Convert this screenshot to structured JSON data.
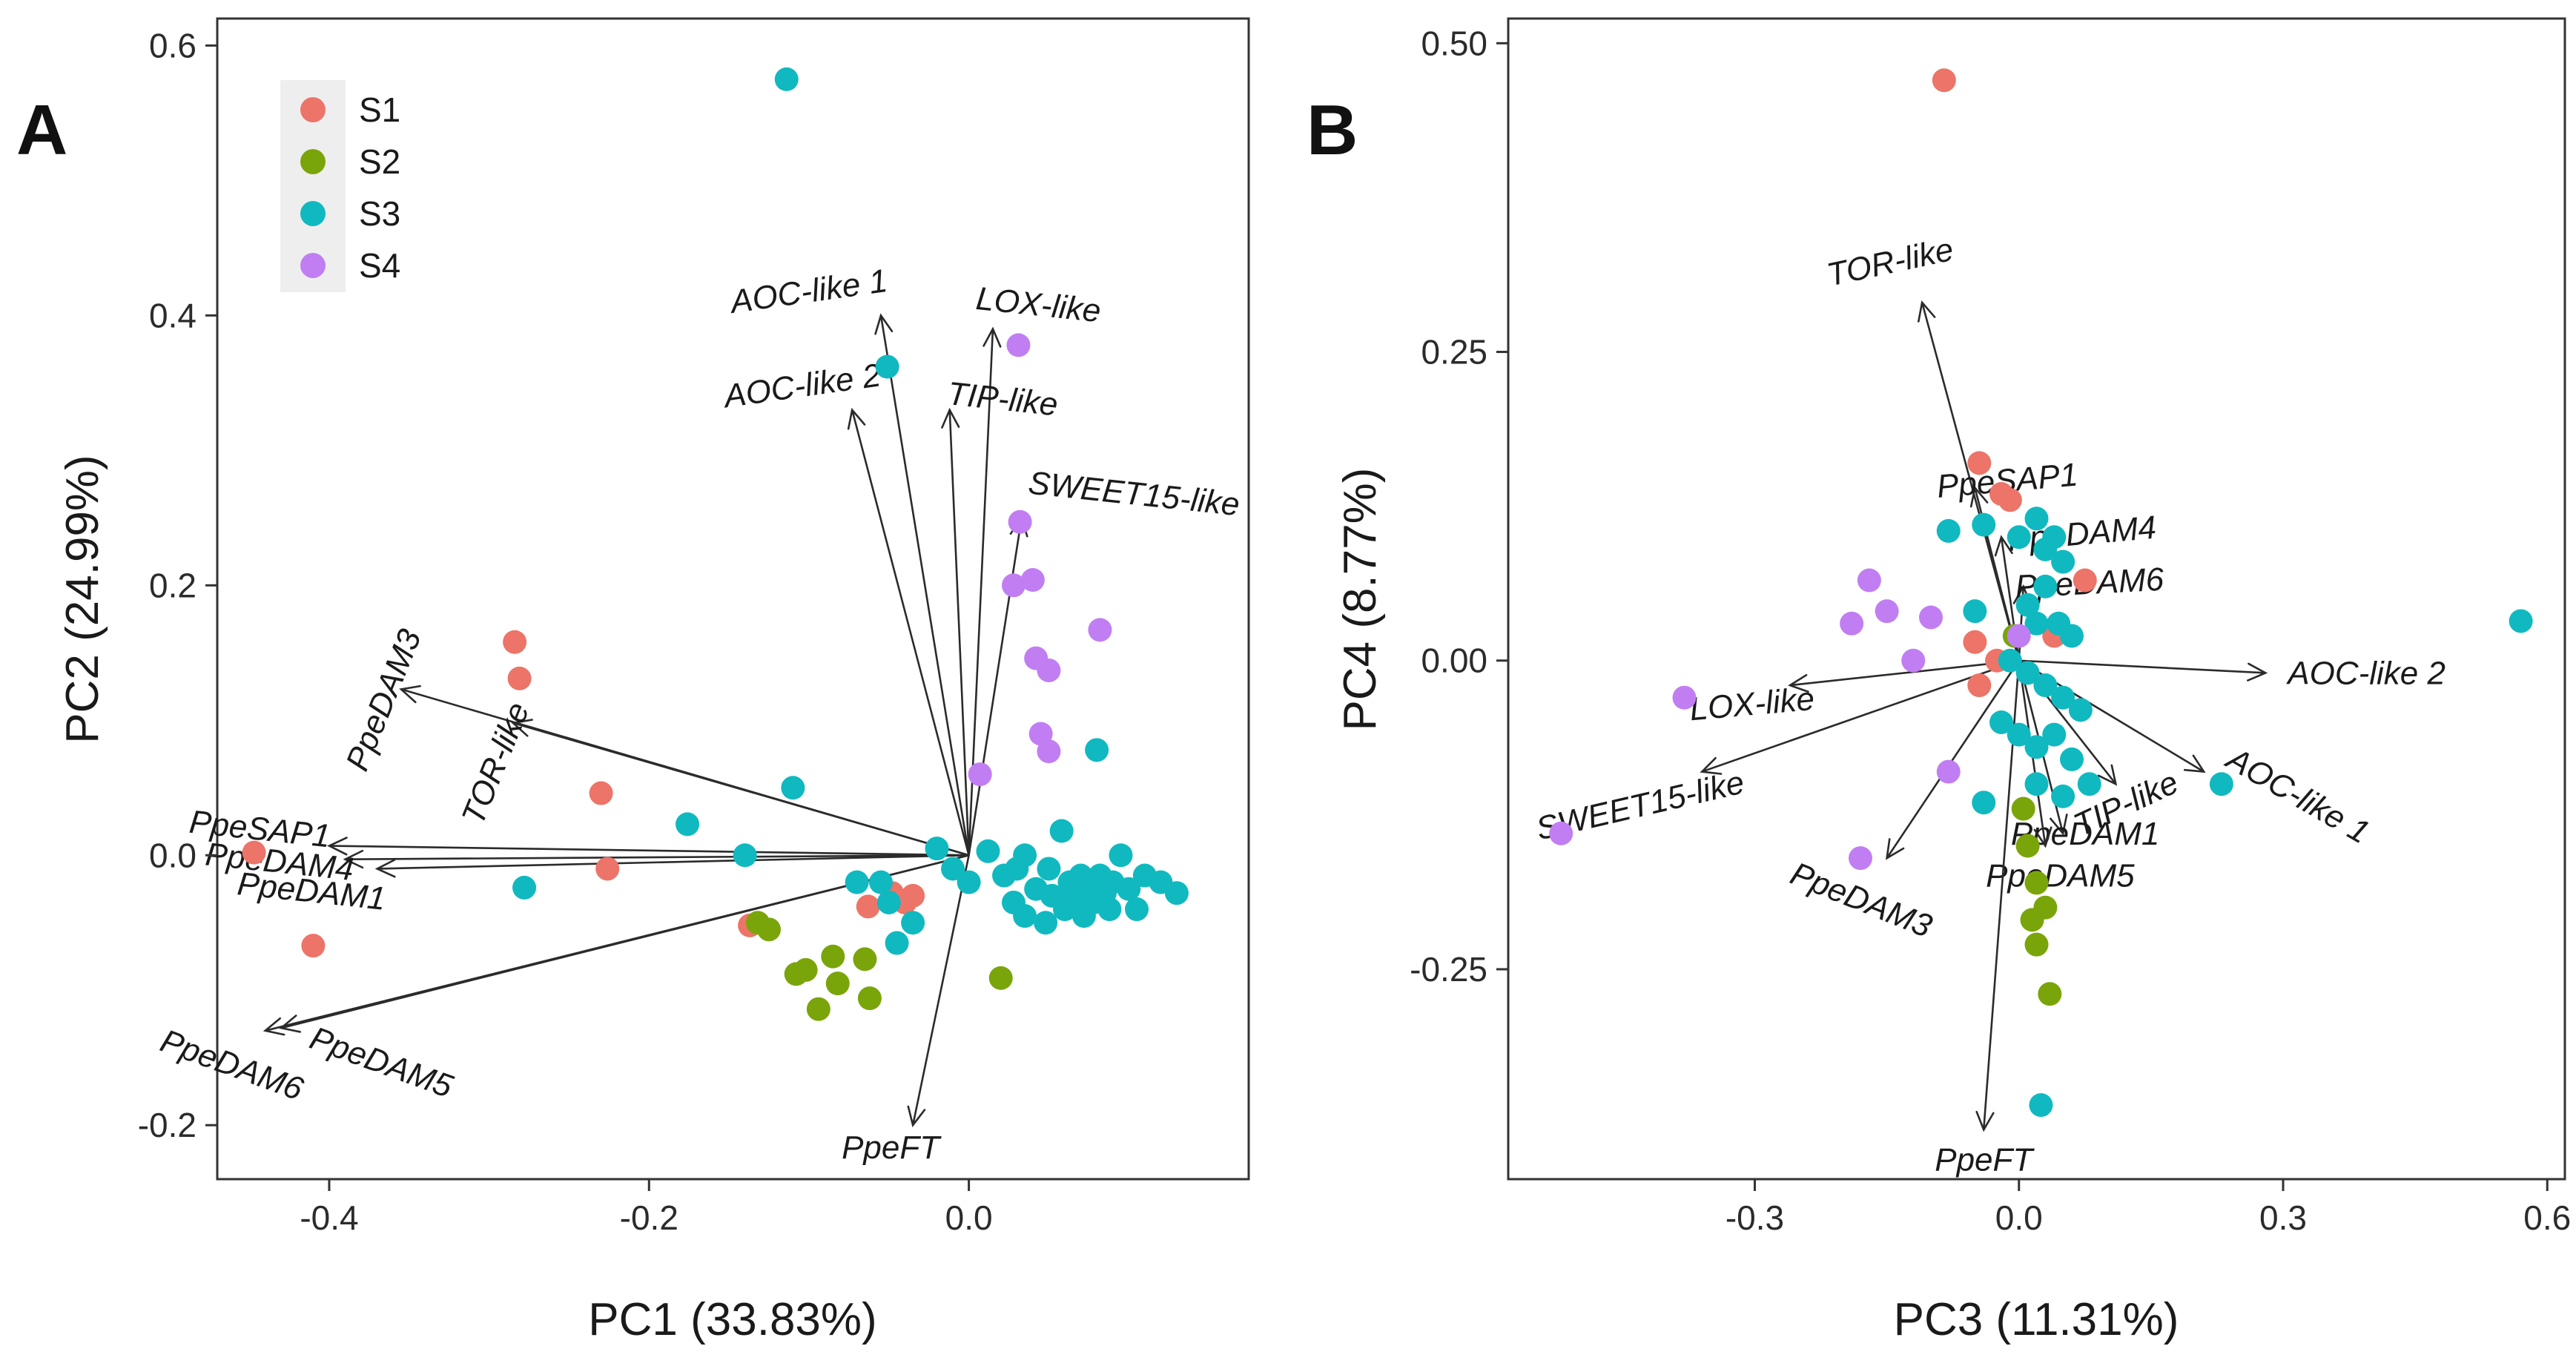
{
  "colors": {
    "S1": "#ec7468",
    "S2": "#7aa50a",
    "S3": "#10b9bf",
    "S4": "#c17ef2"
  },
  "chart_data": [
    {
      "type": "scatter",
      "panel": "A",
      "xlabel": "PC1 (33.83%)",
      "ylabel": "PC2 (24.99%)",
      "xlim": [
        -0.47,
        0.175
      ],
      "ylim": [
        -0.24,
        0.62
      ],
      "xticks": [
        -0.4,
        -0.2,
        0.0
      ],
      "xtick_labels": [
        "-0.4",
        "-0.2",
        "0.0"
      ],
      "yticks": [
        -0.2,
        0.0,
        0.2,
        0.4,
        0.6
      ],
      "ytick_labels": [
        "-0.2",
        "0.0",
        "0.2",
        "0.4",
        "0.6"
      ],
      "legend": {
        "position": "top-left",
        "entries": [
          "S1",
          "S2",
          "S3",
          "S4"
        ]
      },
      "series": [
        {
          "name": "S1",
          "points": [
            [
              -0.447,
              0.002
            ],
            [
              -0.41,
              -0.067
            ],
            [
              -0.284,
              0.158
            ],
            [
              -0.281,
              0.131
            ],
            [
              -0.23,
              0.046
            ],
            [
              -0.226,
              -0.01
            ],
            [
              -0.137,
              -0.052
            ],
            [
              -0.063,
              -0.038
            ],
            [
              -0.048,
              -0.028
            ],
            [
              -0.04,
              -0.035
            ],
            [
              -0.035,
              -0.03
            ]
          ]
        },
        {
          "name": "S2",
          "points": [
            [
              -0.132,
              -0.05
            ],
            [
              -0.125,
              -0.055
            ],
            [
              -0.108,
              -0.088
            ],
            [
              -0.102,
              -0.085
            ],
            [
              -0.094,
              -0.114
            ],
            [
              -0.085,
              -0.075
            ],
            [
              -0.082,
              -0.095
            ],
            [
              -0.065,
              -0.077
            ],
            [
              -0.062,
              -0.106
            ],
            [
              0.02,
              -0.091
            ]
          ]
        },
        {
          "name": "S3",
          "points": [
            [
              -0.114,
              0.575
            ],
            [
              -0.051,
              0.362
            ],
            [
              -0.176,
              0.023
            ],
            [
              -0.278,
              -0.024
            ],
            [
              -0.11,
              0.05
            ],
            [
              -0.14,
              0.0
            ],
            [
              -0.07,
              -0.02
            ],
            [
              -0.055,
              -0.02
            ],
            [
              -0.05,
              -0.035
            ],
            [
              -0.035,
              -0.05
            ],
            [
              -0.045,
              -0.065
            ],
            [
              -0.02,
              0.005
            ],
            [
              -0.01,
              -0.01
            ],
            [
              0.0,
              -0.02
            ],
            [
              0.012,
              0.003
            ],
            [
              0.022,
              -0.015
            ],
            [
              0.028,
              -0.035
            ],
            [
              0.03,
              -0.01
            ],
            [
              0.035,
              0.0
            ],
            [
              0.035,
              -0.045
            ],
            [
              0.042,
              -0.025
            ],
            [
              0.048,
              -0.05
            ],
            [
              0.05,
              -0.01
            ],
            [
              0.052,
              -0.03
            ],
            [
              0.058,
              0.018
            ],
            [
              0.06,
              -0.04
            ],
            [
              0.063,
              -0.02
            ],
            [
              0.066,
              -0.03
            ],
            [
              0.07,
              -0.015
            ],
            [
              0.072,
              -0.045
            ],
            [
              0.075,
              -0.025
            ],
            [
              0.078,
              -0.035
            ],
            [
              0.08,
              0.078
            ],
            [
              0.082,
              -0.015
            ],
            [
              0.085,
              -0.028
            ],
            [
              0.088,
              -0.04
            ],
            [
              0.09,
              -0.02
            ],
            [
              0.095,
              0.0
            ],
            [
              0.1,
              -0.025
            ],
            [
              0.105,
              -0.04
            ],
            [
              0.11,
              -0.015
            ],
            [
              0.12,
              -0.02
            ],
            [
              0.13,
              -0.028
            ]
          ]
        },
        {
          "name": "S4",
          "points": [
            [
              0.031,
              0.378
            ],
            [
              0.032,
              0.247
            ],
            [
              0.028,
              0.2
            ],
            [
              0.04,
              0.204
            ],
            [
              0.042,
              0.146
            ],
            [
              0.05,
              0.137
            ],
            [
              0.045,
              0.09
            ],
            [
              0.05,
              0.077
            ],
            [
              0.082,
              0.167
            ],
            [
              0.007,
              0.06
            ]
          ]
        }
      ],
      "loadings": [
        {
          "label": "AOC-like 1",
          "x": -0.055,
          "y": 0.4
        },
        {
          "label": "LOX-like",
          "x": 0.015,
          "y": 0.39
        },
        {
          "label": "AOC-like 2",
          "x": -0.073,
          "y": 0.33
        },
        {
          "label": "TIP-like",
          "x": -0.012,
          "y": 0.33
        },
        {
          "label": "SWEET15-like",
          "x": 0.033,
          "y": 0.25
        },
        {
          "label": "PpeDAM3",
          "x": -0.355,
          "y": 0.123
        },
        {
          "label": "TOR-like",
          "x": -0.285,
          "y": 0.098
        },
        {
          "label": "PpeSAP1",
          "x": -0.4,
          "y": 0.007
        },
        {
          "label": "PpeDAM4",
          "x": -0.39,
          "y": -0.003
        },
        {
          "label": "PpeDAM1",
          "x": -0.37,
          "y": -0.01
        },
        {
          "label": "PpeDAM6",
          "x": -0.44,
          "y": -0.13
        },
        {
          "label": "PpeDAM5",
          "x": -0.43,
          "y": -0.128
        },
        {
          "label": "PpeFT",
          "x": -0.035,
          "y": -0.2
        }
      ]
    },
    {
      "type": "scatter",
      "panel": "B",
      "xlabel": "PC3 (11.31%)",
      "ylabel": "PC4 (8.77%)",
      "xlim": [
        -0.58,
        0.62
      ],
      "ylim": [
        -0.42,
        0.52
      ],
      "xticks": [
        -0.3,
        0.0,
        0.3,
        0.6
      ],
      "xtick_labels": [
        "-0.3",
        "0.0",
        "0.3",
        "0.6"
      ],
      "yticks": [
        -0.25,
        0.0,
        0.25,
        0.5
      ],
      "ytick_labels": [
        "-0.25",
        "0.00",
        "0.25",
        "0.50"
      ],
      "series": [
        {
          "name": "S1",
          "points": [
            [
              -0.085,
              0.47
            ],
            [
              -0.045,
              0.16
            ],
            [
              -0.02,
              0.135
            ],
            [
              -0.01,
              0.13
            ],
            [
              0.075,
              0.065
            ],
            [
              -0.05,
              0.015
            ],
            [
              -0.045,
              -0.02
            ],
            [
              -0.025,
              0.0
            ],
            [
              0.04,
              0.02
            ]
          ]
        },
        {
          "name": "S2",
          "points": [
            [
              0.005,
              -0.12
            ],
            [
              0.01,
              -0.15
            ],
            [
              0.015,
              -0.21
            ],
            [
              0.02,
              -0.23
            ],
            [
              0.03,
              -0.2
            ],
            [
              0.035,
              -0.27
            ],
            [
              0.02,
              -0.18
            ],
            [
              -0.005,
              0.02
            ]
          ]
        },
        {
          "name": "S3",
          "points": [
            [
              -0.08,
              0.105
            ],
            [
              -0.04,
              0.11
            ],
            [
              0.0,
              0.1
            ],
            [
              0.02,
              0.115
            ],
            [
              0.03,
              0.09
            ],
            [
              0.04,
              0.1
            ],
            [
              0.05,
              0.08
            ],
            [
              0.03,
              0.06
            ],
            [
              -0.05,
              0.04
            ],
            [
              0.01,
              0.045
            ],
            [
              0.02,
              0.03
            ],
            [
              0.045,
              0.03
            ],
            [
              0.06,
              0.02
            ],
            [
              -0.01,
              0.0
            ],
            [
              0.01,
              -0.01
            ],
            [
              0.03,
              -0.02
            ],
            [
              0.05,
              -0.03
            ],
            [
              0.07,
              -0.04
            ],
            [
              -0.02,
              -0.05
            ],
            [
              0.0,
              -0.06
            ],
            [
              0.02,
              -0.07
            ],
            [
              0.04,
              -0.06
            ],
            [
              0.06,
              -0.08
            ],
            [
              0.02,
              -0.1
            ],
            [
              -0.04,
              -0.115
            ],
            [
              0.05,
              -0.11
            ],
            [
              0.08,
              -0.1
            ],
            [
              0.23,
              -0.1
            ],
            [
              0.57,
              0.032
            ],
            [
              0.025,
              -0.36
            ]
          ]
        },
        {
          "name": "S4",
          "points": [
            [
              -0.17,
              0.065
            ],
            [
              -0.15,
              0.04
            ],
            [
              -0.1,
              0.035
            ],
            [
              -0.19,
              0.03
            ],
            [
              -0.12,
              0.0
            ],
            [
              -0.38,
              -0.03
            ],
            [
              -0.52,
              -0.14
            ],
            [
              -0.18,
              -0.16
            ],
            [
              -0.08,
              -0.09
            ],
            [
              0.0,
              0.02
            ]
          ]
        }
      ],
      "loadings": [
        {
          "label": "TOR-like",
          "x": -0.11,
          "y": 0.29
        },
        {
          "label": "PpeSAP1",
          "x": -0.05,
          "y": 0.14
        },
        {
          "label": "PpeDAM4",
          "x": -0.02,
          "y": 0.1
        },
        {
          "label": "PpeDAM6",
          "x": 0.005,
          "y": 0.06
        },
        {
          "label": "AOC-like 2",
          "x": 0.28,
          "y": -0.01
        },
        {
          "label": "LOX-like",
          "x": -0.26,
          "y": -0.02
        },
        {
          "label": "SWEET15-like",
          "x": -0.36,
          "y": -0.09
        },
        {
          "label": "PpeDAM3",
          "x": -0.15,
          "y": -0.16
        },
        {
          "label": "TIP-like",
          "x": 0.11,
          "y": -0.1
        },
        {
          "label": "AOC-like 1",
          "x": 0.21,
          "y": -0.09
        },
        {
          "label": "PpeDAM1",
          "x": 0.05,
          "y": -0.14
        },
        {
          "label": "PpeDAM5",
          "x": 0.03,
          "y": -0.15
        },
        {
          "label": "PpeFT",
          "x": -0.04,
          "y": -0.38
        }
      ]
    }
  ]
}
